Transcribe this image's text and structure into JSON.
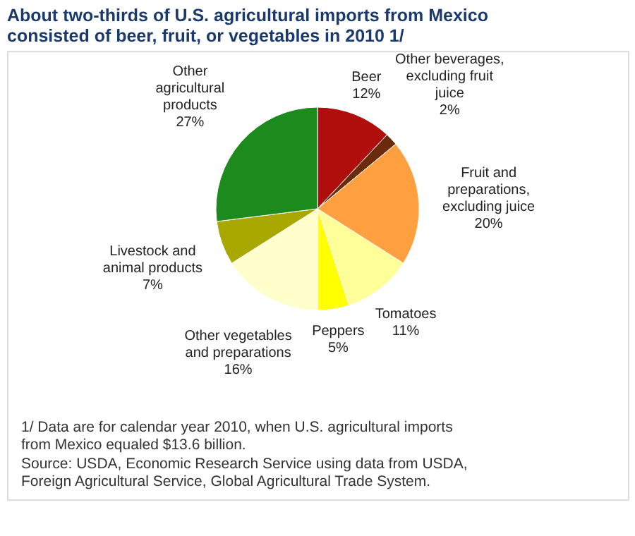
{
  "chart_data": {
    "type": "pie",
    "title": "About two-thirds of U.S. agricultural imports from Mexico consisted of beer, fruit, or vegetables in 2010 1/",
    "categories": [
      "Beer",
      "Other beverages, excluding fruit juice",
      "Fruit and preparations, excluding juice",
      "Tomatoes",
      "Peppers",
      "Other vegetables and preparations",
      "Livestock and animal products",
      "Other agricultural products"
    ],
    "values": [
      12,
      2,
      20,
      11,
      5,
      16,
      7,
      27
    ],
    "colors": [
      "#b00d0d",
      "#6b2a0a",
      "#ffa040",
      "#ffff99",
      "#ffff00",
      "#ffffcc",
      "#a8a800",
      "#1c8a1c"
    ],
    "legend": false,
    "value_labels": [
      "12%",
      "2%",
      "20%",
      "11%",
      "5%",
      "16%",
      "7%",
      "27%"
    ],
    "annotations": [
      "1/ Data are for calendar year 2010, when U.S. agricultural imports from Mexico equaled $13.6 billion.",
      "Source: USDA, Economic Research Service using data from  USDA, Foreign Agricultural Service, Global Agricultural Trade System."
    ]
  }
}
